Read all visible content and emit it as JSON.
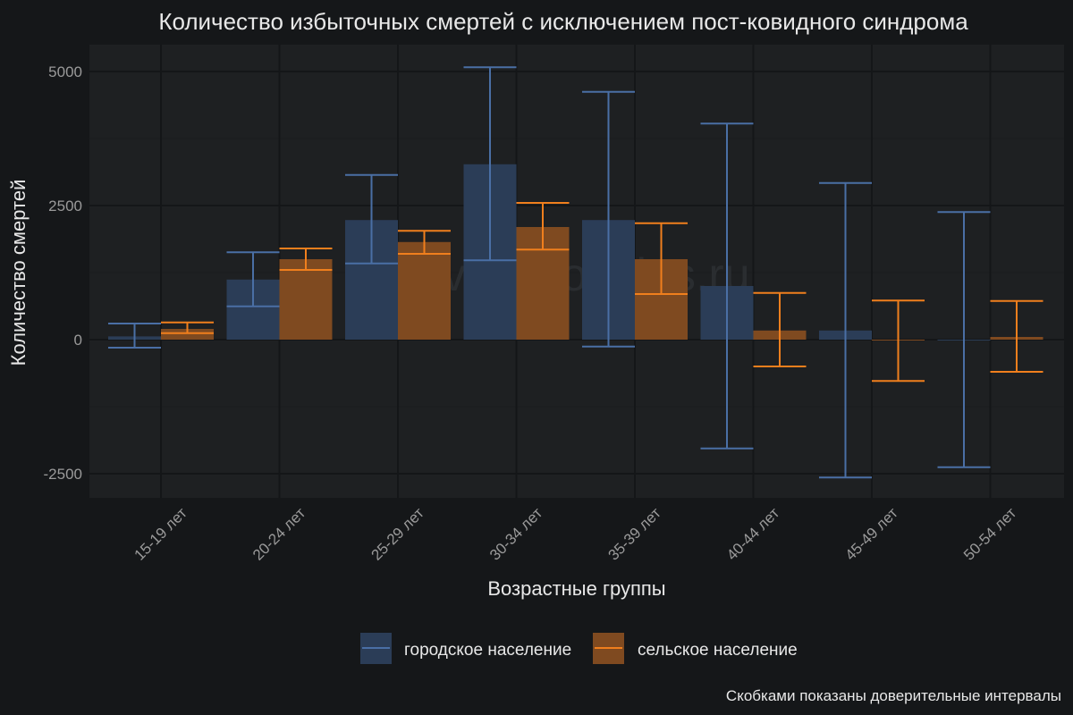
{
  "chart_data": {
    "type": "bar",
    "title": "Количество избыточных смертей с исключением пост-ковидного синдрома",
    "xlabel": "Возрастные группы",
    "ylabel": "Количество смертей",
    "ylim": [
      -2900,
      5500
    ],
    "yticks": [
      -2500,
      0,
      2500,
      5000
    ],
    "yticklabels": [
      "-2500",
      "0",
      "2500",
      "5000"
    ],
    "grid": true,
    "legend": "bottom",
    "categories": [
      "15-19 лет",
      "20-24 лет",
      "25-29 лет",
      "30-34 лет",
      "35-39 лет",
      "40-44 лет",
      "45-49 лет",
      "50-54 лет"
    ],
    "series": [
      {
        "name": "городское население",
        "color": "#4a6fa5",
        "fill": "#2b3d57",
        "values": [
          60,
          1120,
          2230,
          3270,
          2230,
          1000,
          170,
          0
        ],
        "ci_low": [
          -150,
          620,
          1420,
          1480,
          -130,
          -2030,
          -2570,
          -2380
        ],
        "ci_high": [
          300,
          1630,
          3070,
          5080,
          4620,
          4030,
          2920,
          2380
        ]
      },
      {
        "name": "сельское население",
        "color": "#f07f1d",
        "fill": "#7f4a20",
        "values": [
          200,
          1500,
          1820,
          2100,
          1500,
          170,
          -10,
          50
        ],
        "ci_low": [
          120,
          1300,
          1600,
          1680,
          850,
          -500,
          -770,
          -600
        ],
        "ci_high": [
          320,
          1700,
          2030,
          2550,
          2170,
          870,
          730,
          720
        ]
      }
    ],
    "caption": "Скобками показаны доверительные интервалы",
    "watermark": "InvestCookies.ru"
  }
}
